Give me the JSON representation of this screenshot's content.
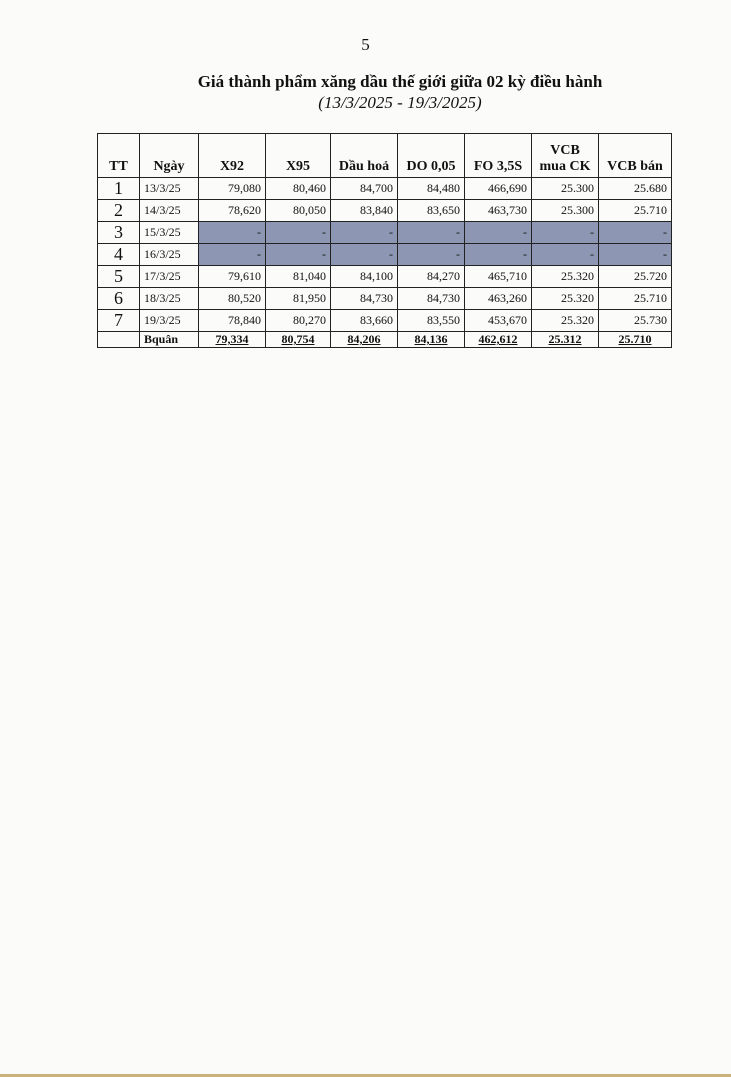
{
  "page_number": "5",
  "title": "Giá thành phẩm xăng dầu thế giới giữa 02 kỳ điều hành",
  "subtitle": "(13/3/2025 - 19/3/2025)",
  "table": {
    "headers": [
      "TT",
      "Ngày",
      "X92",
      "X95",
      "Dầu hoả",
      "DO 0,05",
      "FO 3,5S",
      "VCB mua CK",
      "VCB bán"
    ],
    "rows": [
      {
        "tt": "1",
        "date": "13/3/25",
        "values": [
          "79,080",
          "80,460",
          "84,700",
          "84,480",
          "466,690",
          "25.300",
          "25.680"
        ],
        "shaded": false
      },
      {
        "tt": "2",
        "date": "14/3/25",
        "values": [
          "78,620",
          "80,050",
          "83,840",
          "83,650",
          "463,730",
          "25.300",
          "25.710"
        ],
        "shaded": false
      },
      {
        "tt": "3",
        "date": "15/3/25",
        "values": [
          "-",
          "-",
          "-",
          "-",
          "-",
          "-",
          "-"
        ],
        "shaded": true
      },
      {
        "tt": "4",
        "date": "16/3/25",
        "values": [
          "-",
          "-",
          "-",
          "-",
          "-",
          "-",
          "-"
        ],
        "shaded": true
      },
      {
        "tt": "5",
        "date": "17/3/25",
        "values": [
          "79,610",
          "81,040",
          "84,100",
          "84,270",
          "465,710",
          "25.320",
          "25.720"
        ],
        "shaded": false
      },
      {
        "tt": "6",
        "date": "18/3/25",
        "values": [
          "80,520",
          "81,950",
          "84,730",
          "84,730",
          "463,260",
          "25.320",
          "25.710"
        ],
        "shaded": false
      },
      {
        "tt": "7",
        "date": "19/3/25",
        "values": [
          "78,840",
          "80,270",
          "83,660",
          "83,550",
          "453,670",
          "25.320",
          "25.730"
        ],
        "shaded": false
      }
    ],
    "average": {
      "label": "Bquân",
      "values": [
        "79,334",
        "80,754",
        "84,206",
        "84,136",
        "462,612",
        "25.312",
        "25.710"
      ]
    }
  },
  "colors": {
    "shaded_row": "#8d97b3"
  }
}
